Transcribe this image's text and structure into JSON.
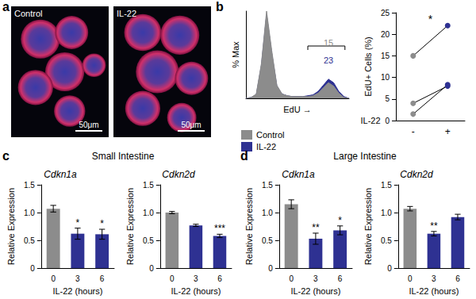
{
  "chart_data": [
    {
      "type": "image",
      "panel": "a",
      "images": [
        {
          "title": "Control",
          "scale_bar": "50μm"
        },
        {
          "title": "IL-22",
          "scale_bar": "50μm"
        }
      ]
    },
    {
      "type": "area",
      "panel": "b",
      "x_label": "EdU →",
      "y_label": "% Max",
      "x": [
        0,
        5,
        10,
        15,
        20,
        25,
        30,
        35,
        40,
        45,
        50,
        55,
        60,
        65,
        70,
        75,
        80,
        85,
        90,
        95,
        100
      ],
      "series": [
        {
          "name": "Control",
          "color": "#8c8c8c",
          "values": [
            0,
            1,
            5,
            40,
            100,
            55,
            15,
            5,
            3,
            2,
            2,
            2,
            2,
            3,
            6,
            12,
            18,
            14,
            6,
            1,
            0
          ]
        },
        {
          "name": "IL-22",
          "color": "#2e3192",
          "values": [
            0,
            1,
            4,
            38,
            96,
            52,
            14,
            5,
            3,
            2,
            2,
            2,
            3,
            4,
            8,
            15,
            22,
            18,
            8,
            2,
            0
          ]
        }
      ],
      "xlim": [
        0,
        100
      ],
      "ylim": [
        0,
        100
      ],
      "tick_labels": false,
      "legend": "bottom",
      "gate": {
        "x": [
          60,
          96
        ],
        "y": 60
      },
      "annotations": [
        {
          "text": "15",
          "x": 80,
          "y": 64,
          "color": "#8c8c8c"
        },
        {
          "text": "23",
          "x": 80,
          "y": 44,
          "color": "#2e3192"
        }
      ]
    },
    {
      "type": "paired",
      "x_label": "IL-22",
      "y_label": "EdU+ Cells (%)",
      "categories": [
        "-",
        "+"
      ],
      "colors": [
        "#8c8c8c",
        "#2e3192"
      ],
      "series": [
        {
          "values": [
            15,
            22
          ]
        },
        {
          "values": [
            4,
            8
          ]
        },
        {
          "values": [
            1.5,
            8.3
          ]
        }
      ],
      "ylim": [
        0,
        25
      ],
      "yticks": [
        0,
        5,
        10,
        15,
        20,
        25
      ],
      "annotations": [
        {
          "text": "*",
          "x": 0.5,
          "y": 23.5
        }
      ]
    },
    {
      "type": "bar",
      "panel": "c",
      "group_title": "Small Intestine",
      "title": "Cdkn1a",
      "x_label": "IL-22 (hours)",
      "y_label": "Relative Expression",
      "categories": [
        "0",
        "3",
        "6"
      ],
      "values": [
        1.07,
        0.62,
        0.61
      ],
      "errors": [
        0.06,
        0.1,
        0.09
      ],
      "significance": [
        null,
        "*",
        "*"
      ],
      "colors": [
        "#8c8c8c",
        "#2e3192",
        "#2e3192"
      ],
      "ylim": [
        0,
        1.5
      ],
      "yticks": [
        0,
        0.5,
        {
          "value": 1,
          "label": "1.0"
        },
        1.5
      ]
    },
    {
      "type": "bar",
      "title": "Cdkn2d",
      "x_label": "IL-22 (hours)",
      "y_label": "Relative Expression",
      "categories": [
        "0",
        "3",
        "6"
      ],
      "values": [
        1.0,
        0.77,
        0.58
      ],
      "errors": [
        0.02,
        0.02,
        0.03
      ],
      "significance": [
        null,
        null,
        "***"
      ],
      "colors": [
        "#8c8c8c",
        "#2e3192",
        "#2e3192"
      ],
      "ylim": [
        0,
        1.5
      ],
      "yticks": [
        0,
        0.5,
        {
          "value": 1,
          "label": "1.0"
        },
        1.5
      ]
    },
    {
      "type": "bar",
      "panel": "d",
      "group_title": "Large Intestine",
      "title": "Cdkn1a",
      "x_label": "IL-22 (hours)",
      "y_label": "Relative Expression",
      "categories": [
        "0",
        "3",
        "6"
      ],
      "values": [
        1.15,
        0.53,
        0.68
      ],
      "errors": [
        0.08,
        0.1,
        0.08
      ],
      "significance": [
        null,
        "**",
        "*"
      ],
      "colors": [
        "#8c8c8c",
        "#2e3192",
        "#2e3192"
      ],
      "ylim": [
        0,
        1.5
      ],
      "yticks": [
        0,
        0.5,
        {
          "value": 1,
          "label": "1.0"
        },
        1.5
      ]
    },
    {
      "type": "bar",
      "title": "Cdkn2d",
      "x_label": "IL-22 (hours)",
      "y_label": "Relative Expression",
      "categories": [
        "0",
        "3",
        "6"
      ],
      "values": [
        1.07,
        0.62,
        0.92
      ],
      "errors": [
        0.04,
        0.04,
        0.05
      ],
      "significance": [
        null,
        "**",
        null
      ],
      "colors": [
        "#8c8c8c",
        "#2e3192",
        "#2e3192"
      ],
      "ylim": [
        0,
        1.5
      ],
      "yticks": [
        0,
        0.5,
        {
          "value": 1,
          "label": "1.0"
        },
        1.5
      ]
    }
  ]
}
